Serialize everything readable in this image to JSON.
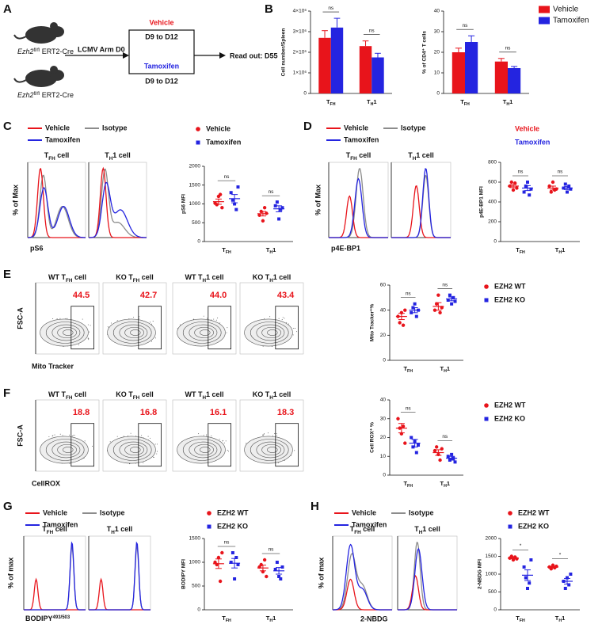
{
  "panels": [
    {
      "label": "A",
      "schematic": {
        "mice": [
          "Ezh2fl/fl ERT2-Cre",
          "Ezh2fl/fl ERT2-Cre"
        ],
        "infection": "LCMV Arm D0",
        "groups": [
          {
            "name": "Vehicle",
            "days": "D9 to D12"
          },
          {
            "name": "Tamoxifen",
            "days": "D9 to D12"
          }
        ],
        "readout": "Read out: D55"
      }
    },
    {
      "label": "B"
    },
    {
      "label": "C",
      "histogram": {
        "legend": [
          "Vehicle",
          "Tamoxifen",
          "Isotype"
        ],
        "colors": [
          "#e8141b",
          "#2424e0",
          "#8c8c8c"
        ],
        "titles": [
          "TFH cell",
          "TH1 cell"
        ],
        "ylabel": "% of Max",
        "xlabel": "pS6"
      }
    },
    {
      "label": "D",
      "histogram": {
        "legend": [
          "Vehicle",
          "Tamoxifen",
          "Isotype"
        ],
        "colors": [
          "#e8141b",
          "#2424e0",
          "#8c8c8c"
        ],
        "titles": [
          "TFH cell",
          "TH1 cell"
        ],
        "ylabel": "% of Max",
        "xlabel": "p4E-BP1"
      }
    },
    {
      "label": "E",
      "flow": {
        "titles": [
          "WT TFH cell",
          "KO TFH cell",
          "WT TH1 cell",
          "KO TH1 cell"
        ],
        "gates": [
          "44.5",
          "42.7",
          "44.0",
          "43.4"
        ],
        "ylabel": "FSC-A",
        "xlabel": "Mito Tracker"
      }
    },
    {
      "label": "F",
      "flow": {
        "titles": [
          "WT TFH cell",
          "KO TFH cell",
          "WT TH1 cell",
          "KO TH1 cell"
        ],
        "gates": [
          "18.8",
          "16.8",
          "16.1",
          "18.3"
        ],
        "ylabel": "FSC-A",
        "xlabel": "CellROX"
      }
    },
    {
      "label": "G",
      "histogram": {
        "legend": [
          "Vehicle",
          "Tamoxifen",
          "Isotype"
        ],
        "colors": [
          "#e8141b",
          "#2424e0",
          "#8c8c8c"
        ],
        "titles": [
          "TFH cell",
          "TH1 cell"
        ],
        "ylabel": "% of max",
        "xlabel": "BODIPY493/503"
      }
    },
    {
      "label": "H",
      "histogram": {
        "legend": [
          "Vehicle",
          "Tamoxifen",
          "Isotype"
        ],
        "colors": [
          "#e8141b",
          "#2424e0",
          "#8c8c8c"
        ],
        "titles": [
          "TFH cell",
          "TH1 cell"
        ],
        "ylabel": "% of max",
        "xlabel": "2-NBDG"
      }
    }
  ],
  "chart_data": [
    {
      "type": "bar",
      "ylabel": "Cell number/Spleen",
      "categories": [
        "TFH",
        "TH1"
      ],
      "ylim": [
        0,
        4000000
      ],
      "yticks": [
        0,
        {
          "value": 1000000,
          "label": "1×10⁶"
        },
        {
          "value": 2000000,
          "label": "2×10⁶"
        },
        {
          "value": 3000000,
          "label": "3×10⁶"
        },
        {
          "value": 4000000,
          "label": "4×10⁶"
        }
      ],
      "annotations": [
        "ns",
        "ns"
      ],
      "series": [
        {
          "color": "#e8141b",
          "values": [
            2700000,
            2300000
          ],
          "errors": [
            350000,
            250000
          ]
        },
        {
          "color": "#2424e0",
          "values": [
            3200000,
            1750000
          ],
          "errors": [
            450000,
            200000
          ]
        }
      ]
    },
    {
      "type": "bar",
      "ylabel": "% of CD4⁺ T cells",
      "categories": [
        "TFH",
        "TH1"
      ],
      "ylim": [
        0,
        40
      ],
      "yticks": [
        0,
        10,
        20,
        30,
        40
      ],
      "annotations": [
        "ns",
        "ns"
      ],
      "legend": "right",
      "legend_style": "box",
      "series": [
        {
          "name": "Vehicle",
          "color": "#e8141b",
          "values": [
            20,
            15.5
          ],
          "errors": [
            2,
            1.5
          ]
        },
        {
          "name": "Tamoxifen",
          "color": "#2424e0",
          "values": [
            25,
            12.3
          ],
          "errors": [
            3,
            0.8
          ]
        }
      ]
    },
    {
      "type": "dot",
      "ylabel": "pS6 MFI",
      "categories": [
        "TFH",
        "TH1"
      ],
      "ylim": [
        0,
        2000
      ],
      "yticks": [
        0,
        500,
        1000,
        1500,
        2000
      ],
      "annotations": [
        "ns",
        "ns"
      ],
      "legend": "top",
      "legend_style": "marker",
      "series": [
        {
          "name": "Vehicle",
          "color": "#e8141b",
          "marker": "circle",
          "values": [
            [
              1020,
              980,
              1200,
              1250,
              900
            ],
            [
              700,
              800,
              550,
              900,
              750
            ]
          ],
          "means": [
            1060,
            740
          ],
          "errors": [
            70,
            60
          ]
        },
        {
          "name": "Tamoxifen",
          "color": "#2424e0",
          "marker": "square",
          "values": [
            [
              1300,
              1100,
              1000,
              850,
              1450
            ],
            [
              950,
              1050,
              600,
              850,
              900
            ]
          ],
          "means": [
            1140,
            870
          ],
          "errors": [
            110,
            80
          ]
        }
      ]
    },
    {
      "type": "dot",
      "ylabel": "p4E-BP1 MFI",
      "categories": [
        "TFH",
        "TH1"
      ],
      "ylim": [
        0,
        800
      ],
      "yticks": [
        0,
        200,
        400,
        600,
        800
      ],
      "annotations": [
        "ns",
        "ns"
      ],
      "legend": "top",
      "legend_style": "text",
      "series": [
        {
          "name": "Vehicle",
          "color": "#e8141b",
          "marker": "circle",
          "values": [
            [
              560,
              600,
              520,
              590,
              540
            ],
            [
              560,
              500,
              600,
              520,
              530
            ]
          ],
          "means": [
            560,
            540
          ],
          "errors": [
            15,
            20
          ]
        },
        {
          "name": "Tamoxifen",
          "color": "#2424e0",
          "marker": "square",
          "values": [
            [
              500,
              560,
              600,
              470,
              530
            ],
            [
              540,
              580,
              500,
              560,
              530
            ]
          ],
          "means": [
            540,
            540
          ],
          "errors": [
            25,
            15
          ]
        }
      ]
    },
    {
      "type": "dot",
      "ylabel": "Mito Tracker⁺%",
      "categories": [
        "TFH",
        "TH1"
      ],
      "ylim": [
        0,
        60
      ],
      "yticks": [
        0,
        20,
        40,
        60
      ],
      "annotations": [
        "ns",
        "ns"
      ],
      "legend": "right",
      "legend_style": "marker",
      "series": [
        {
          "name": "EZH2 WT",
          "color": "#e8141b",
          "marker": "circle",
          "values": [
            [
              35,
              30,
              38,
              28,
              40
            ],
            [
              40,
              45,
              52,
              38,
              42
            ]
          ],
          "means": [
            35,
            43
          ],
          "errors": [
            2.5,
            3
          ]
        },
        {
          "name": "EZH2 KO",
          "color": "#2424e0",
          "marker": "square",
          "values": [
            [
              38,
              42,
              45,
              35,
              40
            ],
            [
              48,
              52,
              45,
              50,
              47
            ]
          ],
          "means": [
            40,
            49
          ],
          "errors": [
            2,
            1.5
          ]
        }
      ]
    },
    {
      "type": "dot",
      "ylabel": "Cell ROX⁺ %",
      "categories": [
        "TFH",
        "TH1"
      ],
      "ylim": [
        0,
        40
      ],
      "yticks": [
        0,
        10,
        20,
        30,
        40
      ],
      "annotations": [
        "ns",
        "ns"
      ],
      "legend": "right",
      "legend_style": "marker",
      "series": [
        {
          "name": "EZH2 WT",
          "color": "#e8141b",
          "marker": "circle",
          "values": [
            [
              30,
              25,
              22,
              26,
              17
            ],
            [
              13,
              15,
              11,
              8,
              14
            ]
          ],
          "means": [
            25,
            12
          ],
          "errors": [
            2.5,
            1.5
          ]
        },
        {
          "name": "EZH2 KO",
          "color": "#2424e0",
          "marker": "square",
          "values": [
            [
              20,
              15,
              18,
              12,
              16
            ],
            [
              10,
              8,
              11,
              9,
              7
            ]
          ],
          "means": [
            17,
            9
          ],
          "errors": [
            2,
            1
          ]
        }
      ]
    },
    {
      "type": "dot",
      "ylabel": "BODIPY MFI",
      "categories": [
        "TFH",
        "TH1"
      ],
      "ylim": [
        0,
        1500
      ],
      "yticks": [
        0,
        500,
        1000,
        1500
      ],
      "annotations": [
        "ns",
        "ns"
      ],
      "legend": "top",
      "legend_style": "marker",
      "series": [
        {
          "name": "EZH2 WT",
          "color": "#e8141b",
          "marker": "circle",
          "values": [
            [
              1000,
              950,
              1100,
              600,
              1200
            ],
            [
              900,
              950,
              800,
              1050,
              700
            ]
          ],
          "means": [
            970,
            880
          ],
          "errors": [
            100,
            60
          ]
        },
        {
          "name": "EZH2 KO",
          "color": "#2424e0",
          "marker": "square",
          "values": [
            [
              1000,
              1200,
              650,
              1100,
              950
            ],
            [
              850,
              1000,
              700,
              650,
              900
            ]
          ],
          "means": [
            980,
            820
          ],
          "errors": [
            100,
            70
          ]
        }
      ]
    },
    {
      "type": "dot",
      "ylabel": "2-NBDG MFI",
      "categories": [
        "TFH",
        "TH1"
      ],
      "ylim": [
        0,
        2000
      ],
      "yticks": [
        0,
        500,
        1000,
        1500,
        2000
      ],
      "annotations": [
        "*",
        "*"
      ],
      "legend": "top",
      "legend_style": "marker",
      "series": [
        {
          "name": "EZH2 WT",
          "color": "#e8141b",
          "marker": "circle",
          "values": [
            [
              1450,
              1500,
              1400,
              1480,
              1430
            ],
            [
              1200,
              1150,
              1250,
              1180,
              1220
            ]
          ],
          "means": [
            1450,
            1200
          ],
          "errors": [
            20,
            20
          ]
        },
        {
          "name": "EZH2 KO",
          "color": "#2424e0",
          "marker": "square",
          "values": [
            [
              1200,
              900,
              600,
              750,
              1400
            ],
            [
              800,
              600,
              900,
              700,
              1000
            ]
          ],
          "means": [
            970,
            800
          ],
          "errors": [
            150,
            80
          ]
        }
      ]
    }
  ]
}
